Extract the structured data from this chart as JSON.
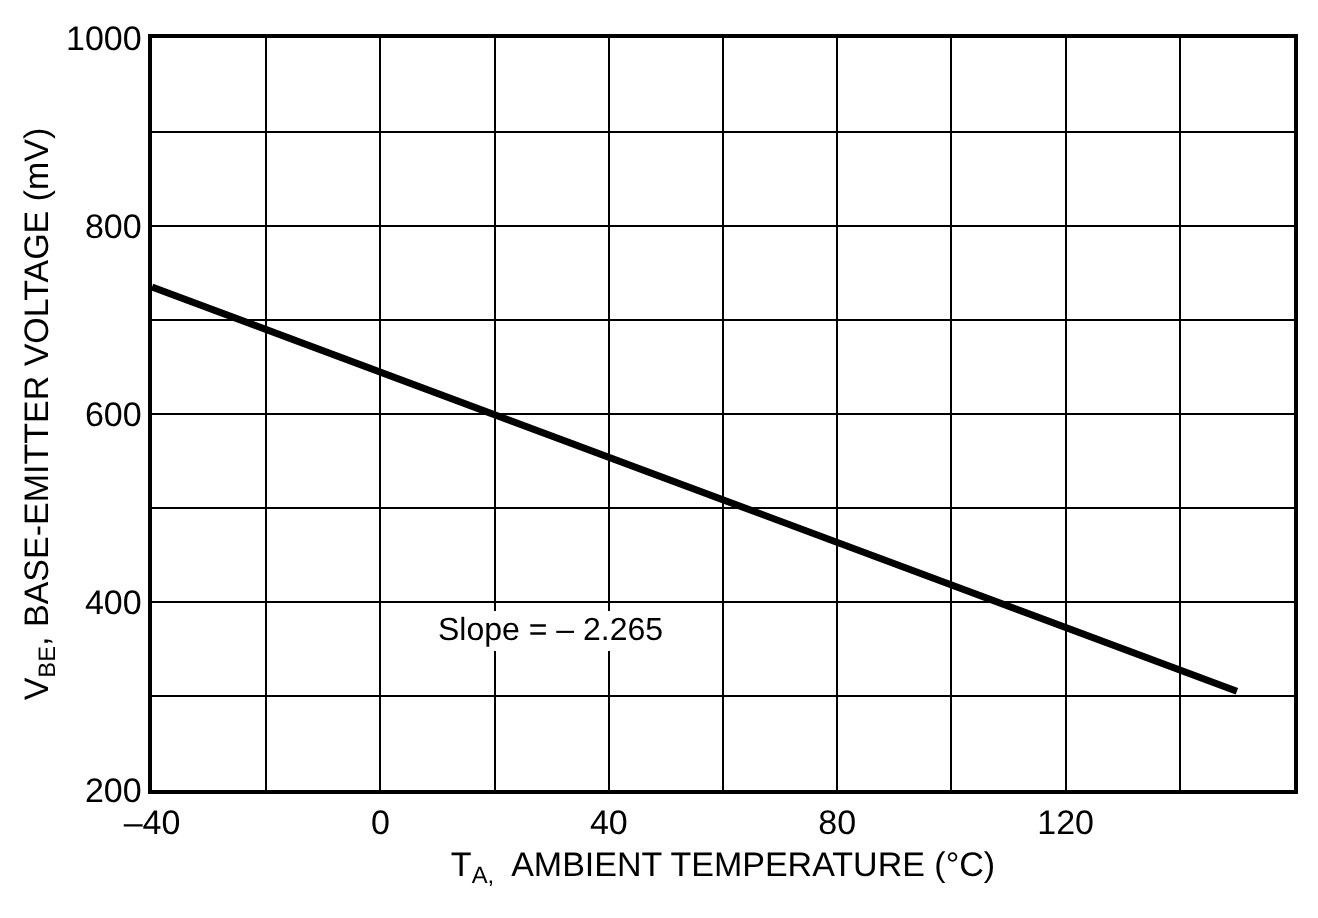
{
  "chart_data": {
    "type": "line",
    "xlabel": "T$_{A,}$  AMBIENT TEMPERATURE (°C)",
    "ylabel": "V$_{BE}$, BASE-EMITTER VOLTAGE (mV)",
    "x": [
      -40,
      150
    ],
    "series": [
      {
        "color": "#000000",
        "values": [
          735,
          305
        ]
      }
    ],
    "xlim": [
      -40,
      160
    ],
    "xticks": [
      {
        "value": -40,
        "label": "–40"
      },
      {
        "value": -20,
        "label": null
      },
      0,
      {
        "value": 20,
        "label": null
      },
      40,
      {
        "value": 60,
        "label": null
      },
      80,
      {
        "value": 100,
        "label": null
      },
      120,
      {
        "value": 140,
        "label": null
      }
    ],
    "ylim": [
      200,
      1000
    ],
    "yticks": [
      200,
      {
        "value": 300,
        "label": null
      },
      400,
      {
        "value": 500,
        "label": null
      },
      600,
      {
        "value": 700,
        "label": null
      },
      800,
      {
        "value": 900,
        "label": null
      },
      1000
    ],
    "grid": true,
    "marker": "none",
    "line_style": "solid",
    "annotations": [
      "Slope = – 2.265"
    ]
  }
}
